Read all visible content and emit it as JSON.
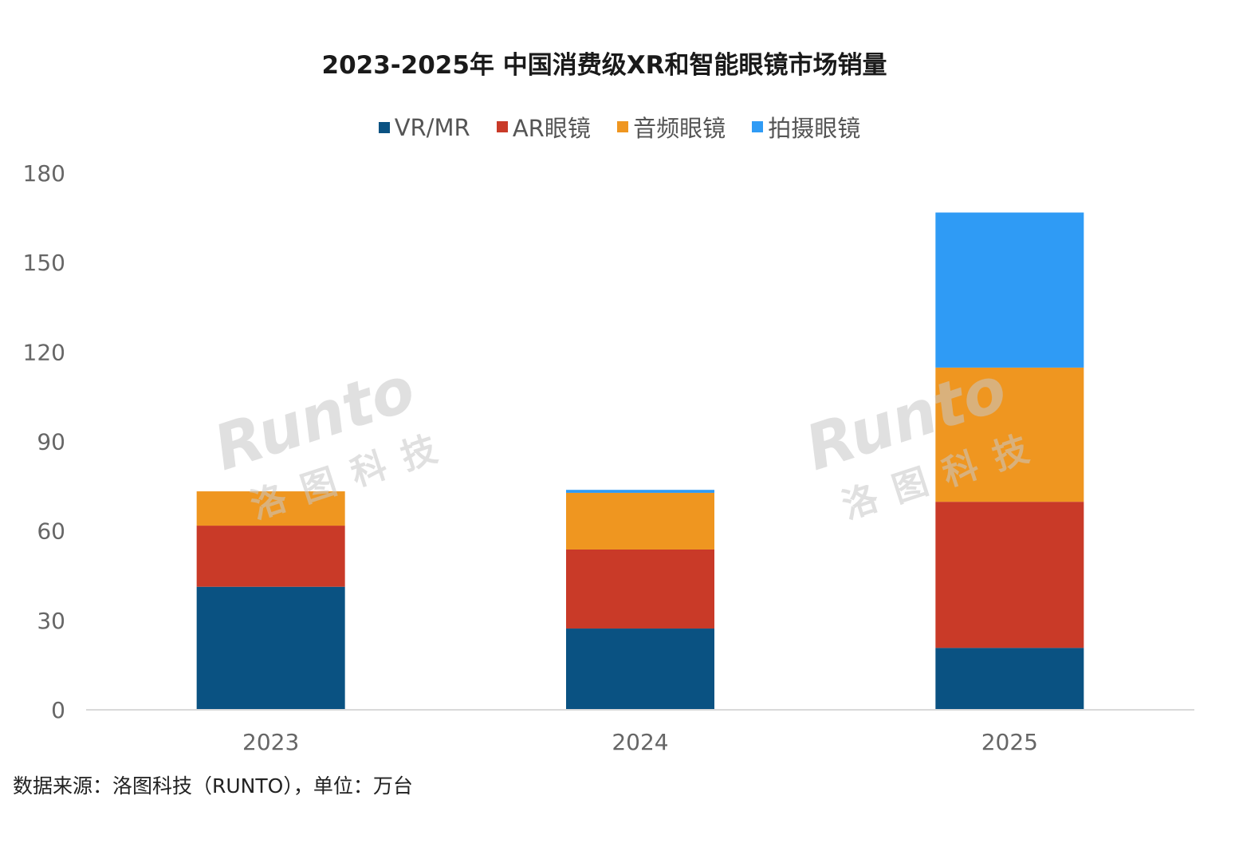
{
  "chart_data": {
    "type": "bar",
    "stacked": true,
    "title": "2023-2025年 中国消费级XR和智能眼镜市场销量",
    "categories": [
      "2023",
      "2024",
      "2025"
    ],
    "series": [
      {
        "name": "VR/MR",
        "color": "#0a5282",
        "values": [
          41,
          27,
          20.5
        ]
      },
      {
        "name": "AR眼镜",
        "color": "#c93a28",
        "values": [
          20.5,
          26.5,
          49
        ]
      },
      {
        "name": "音频眼镜",
        "color": "#ef9620",
        "values": [
          11.5,
          19,
          45
        ]
      },
      {
        "name": "拍摄眼镜",
        "color": "#2f9bf5",
        "values": [
          0,
          1,
          52
        ]
      }
    ],
    "ylim": [
      0,
      180
    ],
    "yticks": [
      "0",
      "30",
      "60",
      "90",
      "120",
      "150",
      "180"
    ],
    "legend_position": "top",
    "grid": false
  },
  "watermark": {
    "brand": "Runto",
    "cn": "洛图科技"
  },
  "source_note": "数据来源：洛图科技（RUNTO），单位：万台"
}
